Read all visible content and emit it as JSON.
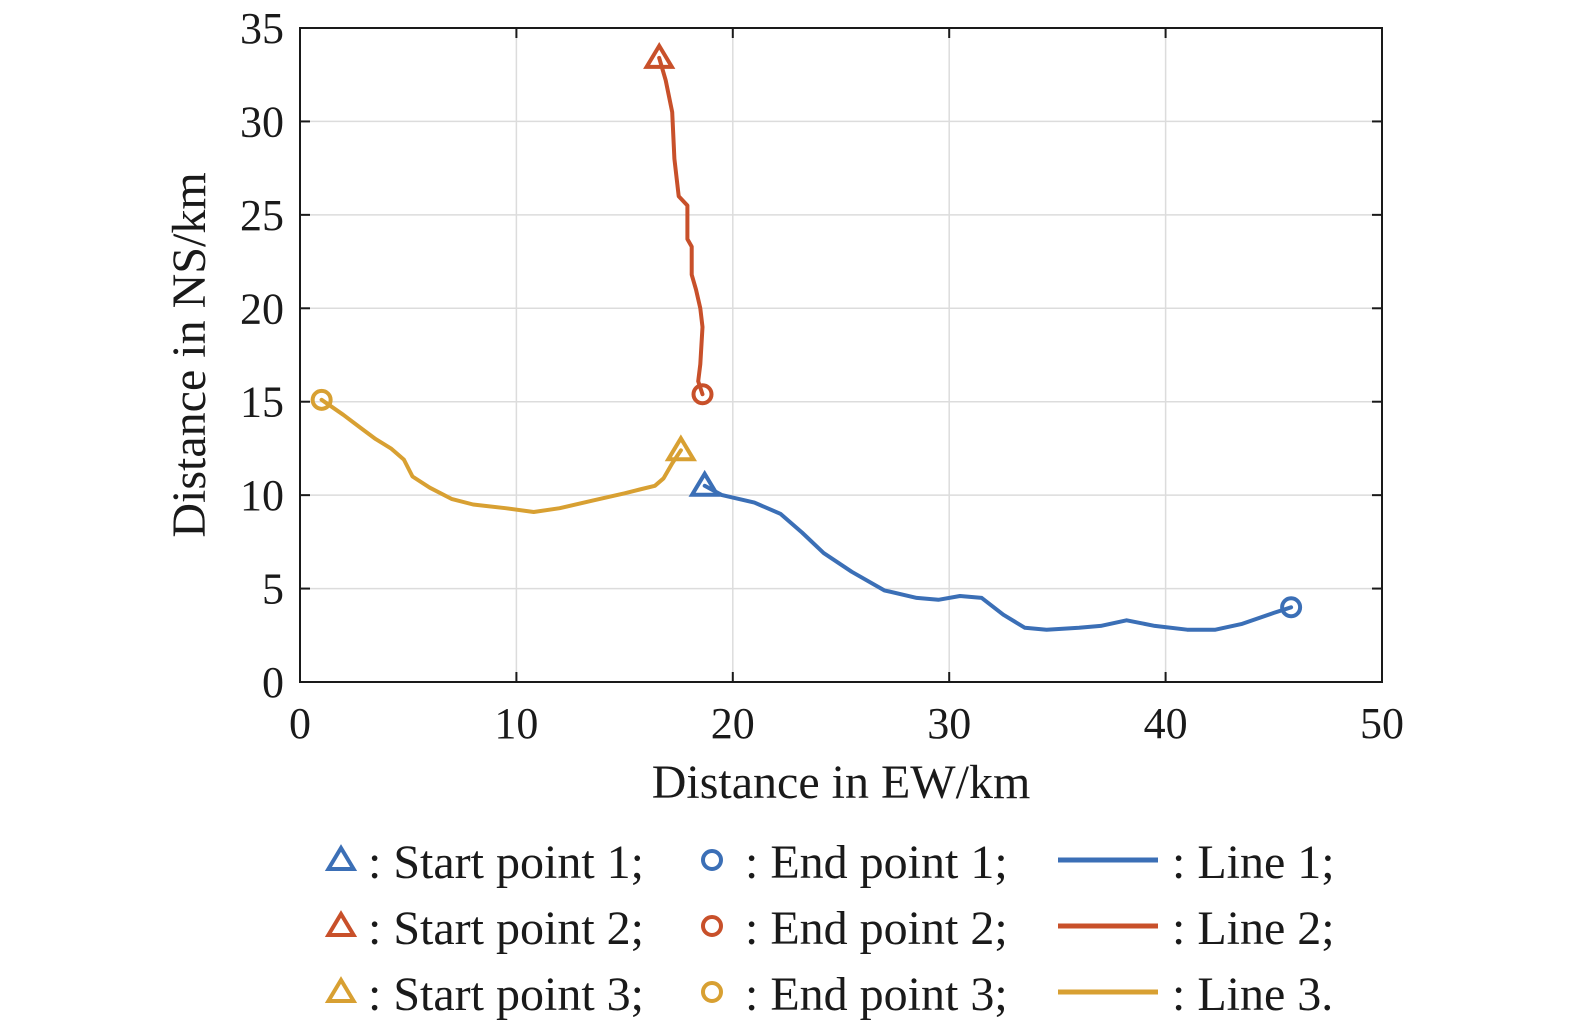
{
  "chart_data": {
    "type": "line",
    "title": "",
    "xlabel": "Distance in EW/km",
    "ylabel": "Distance in NS/km",
    "xlim": [
      0,
      50
    ],
    "ylim": [
      0,
      35
    ],
    "xticks": [
      0,
      10,
      20,
      30,
      40,
      50
    ],
    "yticks": [
      0,
      5,
      10,
      15,
      20,
      25,
      30,
      35
    ],
    "grid": true,
    "legend_position": "below",
    "series": [
      {
        "name": "Line 1",
        "color": "#3b6fb6",
        "start_label": "Start point 1",
        "end_label": "End point 1",
        "x": [
          18.7,
          19.5,
          21.0,
          22.2,
          23.2,
          24.2,
          25.5,
          27.0,
          28.5,
          29.5,
          30.5,
          31.5,
          32.5,
          33.5,
          34.5,
          36.0,
          37.0,
          38.2,
          39.5,
          41.0,
          42.3,
          43.5,
          45.0,
          45.8
        ],
        "y": [
          10.5,
          10.0,
          9.6,
          9.0,
          8.0,
          6.9,
          5.9,
          4.9,
          4.5,
          4.4,
          4.6,
          4.5,
          3.6,
          2.9,
          2.8,
          2.9,
          3.0,
          3.3,
          3.0,
          2.8,
          2.8,
          3.1,
          3.7,
          4.0
        ]
      },
      {
        "name": "Line 2",
        "color": "#c8502a",
        "start_label": "Start point 2",
        "end_label": "End point 2",
        "x": [
          16.6,
          16.9,
          17.2,
          17.3,
          17.5,
          17.9,
          17.9,
          18.1,
          18.1,
          18.3,
          18.5,
          18.6,
          18.5,
          18.4,
          18.6
        ],
        "y": [
          33.4,
          32.2,
          30.5,
          28.0,
          26.0,
          25.5,
          23.7,
          23.3,
          21.8,
          21.0,
          20.0,
          19.0,
          17.0,
          16.1,
          15.4
        ]
      },
      {
        "name": "Line 3",
        "color": "#d8a032",
        "start_label": "Start point 3",
        "end_label": "End point 3",
        "x": [
          17.6,
          17.2,
          16.8,
          16.4,
          15.7,
          15.0,
          13.5,
          12.0,
          10.8,
          9.5,
          8.0,
          7.0,
          6.0,
          5.2,
          4.8,
          4.2,
          3.5,
          2.8,
          2.0,
          1.5,
          1.0
        ],
        "y": [
          12.4,
          11.7,
          10.9,
          10.5,
          10.3,
          10.1,
          9.7,
          9.3,
          9.1,
          9.3,
          9.5,
          9.8,
          10.4,
          11.0,
          11.9,
          12.5,
          13.0,
          13.6,
          14.3,
          14.7,
          15.1
        ]
      }
    ]
  }
}
